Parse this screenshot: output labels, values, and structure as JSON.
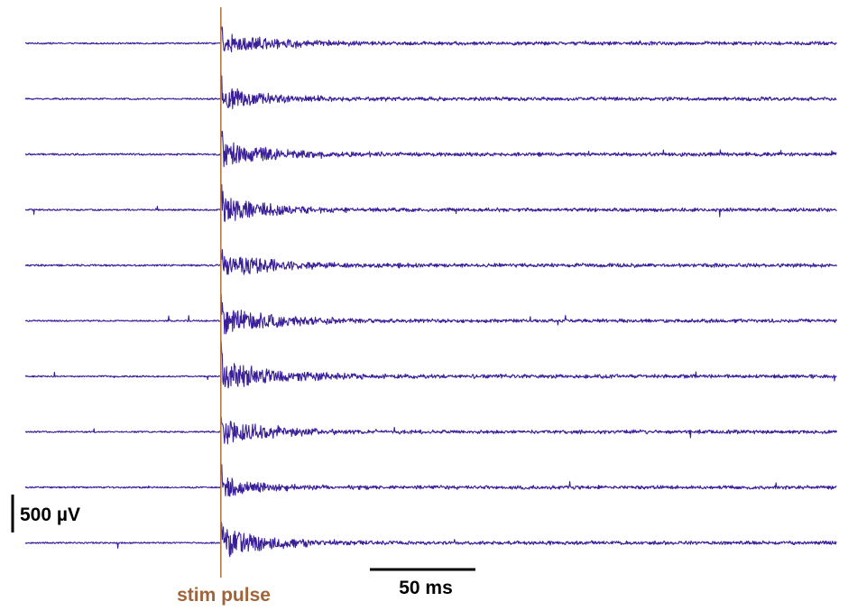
{
  "chart_data": {
    "type": "line",
    "title": "",
    "xlabel": "",
    "ylabel": "",
    "trace_count": 10,
    "time_window_ms": [
      -92,
      290
    ],
    "stim_time_ms": 0,
    "annotations": {
      "stim_label": "stim pulse",
      "time_scale_label": "50 ms",
      "time_scale_value_ms": 50,
      "voltage_scale_label": "500 µV",
      "voltage_scale_value_uv": 500
    },
    "colors": {
      "trace": "#3b1f9a",
      "stim": "#b07a45",
      "scalebar": "#000000",
      "stim_label": "#a0643a"
    },
    "traces": [
      {
        "baseline_noise_uv": 10,
        "response_peak_uv": 150,
        "decay_ms": 28
      },
      {
        "baseline_noise_uv": 10,
        "response_peak_uv": 170,
        "decay_ms": 24
      },
      {
        "baseline_noise_uv": 12,
        "response_peak_uv": 180,
        "decay_ms": 26
      },
      {
        "baseline_noise_uv": 10,
        "response_peak_uv": 200,
        "decay_ms": 22
      },
      {
        "baseline_noise_uv": 12,
        "response_peak_uv": 150,
        "decay_ms": 32
      },
      {
        "baseline_noise_uv": 10,
        "response_peak_uv": 190,
        "decay_ms": 28
      },
      {
        "baseline_noise_uv": 10,
        "response_peak_uv": 200,
        "decay_ms": 30
      },
      {
        "baseline_noise_uv": 10,
        "response_peak_uv": 170,
        "decay_ms": 26
      },
      {
        "baseline_noise_uv": 10,
        "response_peak_uv": 140,
        "decay_ms": 20
      },
      {
        "baseline_noise_uv": 10,
        "response_peak_uv": 210,
        "decay_ms": 24
      }
    ]
  }
}
